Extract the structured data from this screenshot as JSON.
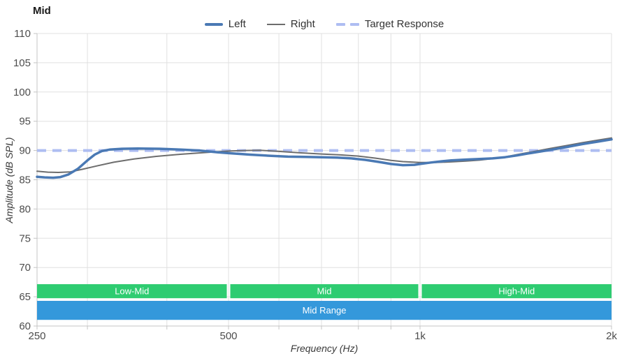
{
  "title": "Mid",
  "legend": [
    {
      "label": "Left",
      "series": "left",
      "style": "solid-thick"
    },
    {
      "label": "Right",
      "series": "right",
      "style": "solid-thin"
    },
    {
      "label": "Target Response",
      "series": "target",
      "style": "dashed"
    }
  ],
  "colors": {
    "left": "#4a79b4",
    "right": "#6d6d6d",
    "target": "#aebdf2",
    "band_green": "#2ecc71",
    "band_blue": "#3498db",
    "grid": "#e0e0e0",
    "axis": "#c4c4c4",
    "tick_text": "#4d4d4d"
  },
  "chart_data": {
    "type": "line",
    "title": "Mid",
    "xlabel": "Frequency (Hz)",
    "ylabel": "Amplitude (dB SPL)",
    "x_scale": "log",
    "xlim": [
      250,
      2000
    ],
    "ylim": [
      60,
      110
    ],
    "grid": true,
    "legend_position": "top-center",
    "x_gridlines": [
      250,
      300,
      400,
      500,
      600,
      700,
      800,
      900,
      1000,
      2000
    ],
    "x_ticks_labeled": [
      {
        "v": 250,
        "label": "250"
      },
      {
        "v": 500,
        "label": "500"
      },
      {
        "v": 1000,
        "label": "1k"
      },
      {
        "v": 2000,
        "label": "2k"
      }
    ],
    "y_ticks": [
      {
        "v": 110,
        "label": "110"
      },
      {
        "v": 105,
        "label": "105"
      },
      {
        "v": 100,
        "label": "100"
      },
      {
        "v": 95,
        "label": "95"
      },
      {
        "v": 90,
        "label": "90"
      },
      {
        "v": 85,
        "label": "85"
      },
      {
        "v": 80,
        "label": "80"
      },
      {
        "v": 75,
        "label": "75"
      },
      {
        "v": 70,
        "label": "70"
      },
      {
        "v": 65,
        "label": "65"
      },
      {
        "v": 60,
        "label": "60"
      }
    ],
    "target": {
      "label": "Target Response",
      "db": 90,
      "dash": [
        13,
        9
      ],
      "width": 4
    },
    "series": [
      {
        "name": "Right",
        "color_key": "right",
        "width": 2,
        "points": [
          [
            250,
            86.45
          ],
          [
            260,
            86.3
          ],
          [
            270,
            86.25
          ],
          [
            282,
            86.35
          ],
          [
            295,
            86.8
          ],
          [
            310,
            87.35
          ],
          [
            330,
            88.0
          ],
          [
            355,
            88.55
          ],
          [
            385,
            89.0
          ],
          [
            420,
            89.35
          ],
          [
            460,
            89.65
          ],
          [
            500,
            89.9
          ],
          [
            530,
            90.0
          ],
          [
            560,
            90.05
          ],
          [
            600,
            89.85
          ],
          [
            650,
            89.6
          ],
          [
            700,
            89.4
          ],
          [
            750,
            89.25
          ],
          [
            800,
            89.05
          ],
          [
            850,
            88.7
          ],
          [
            900,
            88.3
          ],
          [
            940,
            88.1
          ],
          [
            1000,
            87.95
          ],
          [
            1060,
            87.95
          ],
          [
            1120,
            88.05
          ],
          [
            1180,
            88.2
          ],
          [
            1240,
            88.35
          ],
          [
            1300,
            88.6
          ],
          [
            1360,
            88.9
          ],
          [
            1420,
            89.3
          ],
          [
            1480,
            89.65
          ],
          [
            1540,
            90.0
          ],
          [
            1600,
            90.35
          ],
          [
            1700,
            90.85
          ],
          [
            1800,
            91.35
          ],
          [
            1900,
            91.75
          ],
          [
            2000,
            92.15
          ]
        ]
      },
      {
        "name": "Left",
        "color_key": "left",
        "width": 3.5,
        "points": [
          [
            250,
            85.5
          ],
          [
            257,
            85.4
          ],
          [
            265,
            85.35
          ],
          [
            272,
            85.45
          ],
          [
            280,
            85.9
          ],
          [
            290,
            86.9
          ],
          [
            300,
            88.3
          ],
          [
            308,
            89.3
          ],
          [
            316,
            89.9
          ],
          [
            325,
            90.15
          ],
          [
            340,
            90.3
          ],
          [
            360,
            90.35
          ],
          [
            390,
            90.3
          ],
          [
            420,
            90.15
          ],
          [
            450,
            90.0
          ],
          [
            480,
            89.7
          ],
          [
            500,
            89.55
          ],
          [
            540,
            89.3
          ],
          [
            580,
            89.1
          ],
          [
            620,
            88.95
          ],
          [
            660,
            88.9
          ],
          [
            700,
            88.85
          ],
          [
            740,
            88.8
          ],
          [
            780,
            88.65
          ],
          [
            820,
            88.4
          ],
          [
            860,
            88.05
          ],
          [
            900,
            87.7
          ],
          [
            940,
            87.5
          ],
          [
            980,
            87.55
          ],
          [
            1000,
            87.7
          ],
          [
            1040,
            87.95
          ],
          [
            1080,
            88.15
          ],
          [
            1120,
            88.3
          ],
          [
            1180,
            88.45
          ],
          [
            1240,
            88.55
          ],
          [
            1300,
            88.65
          ],
          [
            1360,
            88.85
          ],
          [
            1420,
            89.15
          ],
          [
            1480,
            89.5
          ],
          [
            1550,
            89.85
          ],
          [
            1600,
            90.1
          ],
          [
            1700,
            90.6
          ],
          [
            1800,
            91.1
          ],
          [
            1900,
            91.5
          ],
          [
            2000,
            91.9
          ]
        ]
      }
    ],
    "bands": [
      {
        "row": "ranges",
        "color_key": "band_green",
        "db_top": 67.15,
        "db_bottom": 64.75,
        "segments": [
          {
            "label": "Low-Mid",
            "from": 250,
            "to": 500
          },
          {
            "label": "Mid",
            "from": 500,
            "to": 1000
          },
          {
            "label": "High-Mid",
            "from": 1000,
            "to": 2000
          }
        ]
      },
      {
        "row": "overall",
        "color_key": "band_blue",
        "db_top": 64.3,
        "db_bottom": 61.05,
        "segments": [
          {
            "label": "Mid Range",
            "from": 250,
            "to": 2000
          }
        ]
      }
    ]
  }
}
